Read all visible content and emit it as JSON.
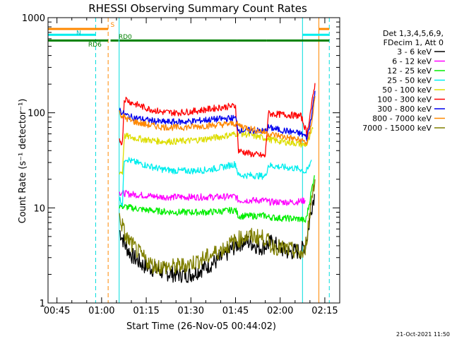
{
  "chart_data": {
    "type": "line",
    "title": "RHESSI Observing Summary Count Rates",
    "xlabel": "Start Time (26-Nov-05 00:44:02)",
    "ylabel": "Count Rate (s⁻¹ detector⁻¹)",
    "yscale": "log",
    "ylim": [
      1,
      1000
    ],
    "xlim_minutes": [
      -3,
      95
    ],
    "x_ticks": [
      {
        "label": "00:45",
        "minutes": 0
      },
      {
        "label": "01:00",
        "minutes": 15
      },
      {
        "label": "01:15",
        "minutes": 30
      },
      {
        "label": "01:30",
        "minutes": 45
      },
      {
        "label": "01:45",
        "minutes": 60
      },
      {
        "label": "02:00",
        "minutes": 75
      },
      {
        "label": "02:15",
        "minutes": 90
      }
    ],
    "y_ticks": [
      {
        "label": "1",
        "value": 1
      },
      {
        "label": "10",
        "value": 10
      },
      {
        "label": "100",
        "value": 100
      },
      {
        "label": "1000",
        "value": 1000
      }
    ],
    "legend_header": [
      "Det 1,3,4,5,6,9,",
      "FDecim 1, Att 0"
    ],
    "series": [
      {
        "name": "3 - 6 keV",
        "color": "#000000",
        "points": [
          [
            21,
            5.8
          ],
          [
            22,
            4.8
          ],
          [
            23,
            4.0
          ],
          [
            25,
            3.2
          ],
          [
            27,
            2.8
          ],
          [
            29,
            2.5
          ],
          [
            32,
            2.3
          ],
          [
            36,
            2.1
          ],
          [
            40,
            2.0
          ],
          [
            45,
            2.0
          ],
          [
            50,
            2.4
          ],
          [
            55,
            2.9
          ],
          [
            60,
            4.0
          ],
          [
            63,
            4.5
          ],
          [
            66,
            4.2
          ],
          [
            68,
            3.8
          ],
          [
            70,
            4.0
          ],
          [
            72,
            4.3
          ],
          [
            74,
            4.0
          ],
          [
            76,
            3.6
          ],
          [
            78,
            3.4
          ],
          [
            80,
            3.5
          ],
          [
            82,
            3.5
          ],
          [
            83.5,
            4.2
          ],
          [
            84.5,
            6.0
          ],
          [
            85.5,
            10.0
          ],
          [
            86.5,
            14.0
          ]
        ]
      },
      {
        "name": "6 - 12 keV",
        "color": "#ff00ff",
        "points": [
          [
            21,
            14.5
          ],
          [
            24,
            14.0
          ],
          [
            30,
            13.5
          ],
          [
            35,
            13.0
          ],
          [
            40,
            13.0
          ],
          [
            45,
            13.0
          ],
          [
            50,
            13.0
          ],
          [
            55,
            13.0
          ],
          [
            60,
            13.2
          ],
          [
            61,
            12.0
          ],
          [
            65,
            12.0
          ],
          [
            70,
            12.0
          ],
          [
            71,
            11.5
          ],
          [
            75,
            11.5
          ],
          [
            80,
            11.5
          ],
          [
            82,
            11.8
          ],
          [
            83.5,
            12.0
          ]
        ]
      },
      {
        "name": "12 - 25 keV",
        "color": "#00ee00",
        "points": [
          [
            21,
            10.5
          ],
          [
            25,
            10.0
          ],
          [
            30,
            9.5
          ],
          [
            35,
            9.2
          ],
          [
            40,
            9.0
          ],
          [
            45,
            9.0
          ],
          [
            50,
            9.0
          ],
          [
            55,
            9.2
          ],
          [
            60,
            9.5
          ],
          [
            61,
            8.2
          ],
          [
            65,
            8.2
          ],
          [
            70,
            8.3
          ],
          [
            71,
            8.0
          ],
          [
            75,
            7.8
          ],
          [
            80,
            7.7
          ],
          [
            82,
            7.6
          ],
          [
            83.5,
            7.2
          ],
          [
            84.5,
            10.0
          ],
          [
            85.5,
            15.0
          ],
          [
            86.5,
            22.0
          ]
        ]
      },
      {
        "name": "25 - 50 keV",
        "color": "#00eeee",
        "points": [
          [
            21,
            12.5
          ],
          [
            22,
            11.0
          ],
          [
            22.6,
            32.0
          ],
          [
            23,
            33.5
          ],
          [
            25,
            31.0
          ],
          [
            30,
            28.0
          ],
          [
            35,
            25.5
          ],
          [
            40,
            24.5
          ],
          [
            45,
            24.5
          ],
          [
            50,
            25.0
          ],
          [
            55,
            26.5
          ],
          [
            60,
            29.0
          ],
          [
            61,
            22.0
          ],
          [
            65,
            22.0
          ],
          [
            70,
            21.5
          ],
          [
            71,
            28.0
          ],
          [
            75,
            27.0
          ],
          [
            80,
            26.0
          ],
          [
            82,
            25.5
          ],
          [
            83.5,
            23.5
          ],
          [
            84.5,
            26.0
          ],
          [
            85.5,
            32.0
          ]
        ]
      },
      {
        "name": "50 - 100 keV",
        "color": "#dddd00",
        "points": [
          [
            21,
            24.0
          ],
          [
            22,
            23.5
          ],
          [
            22.6,
            56.0
          ],
          [
            23,
            57.0
          ],
          [
            25,
            55.0
          ],
          [
            30,
            52.0
          ],
          [
            35,
            50.0
          ],
          [
            40,
            50.0
          ],
          [
            45,
            51.0
          ],
          [
            50,
            53.0
          ],
          [
            55,
            56.0
          ],
          [
            60,
            60.0
          ],
          [
            61,
            61.0
          ],
          [
            63,
            60.0
          ],
          [
            65,
            58.0
          ],
          [
            70,
            54.0
          ],
          [
            72,
            52.0
          ],
          [
            75,
            50.0
          ],
          [
            80,
            48.0
          ],
          [
            83,
            46.0
          ],
          [
            84,
            47.0
          ],
          [
            85,
            55.0
          ],
          [
            86,
            68.0
          ]
        ]
      },
      {
        "name": "100 - 300 keV",
        "color": "#ff0000",
        "points": [
          [
            21,
            52.0
          ],
          [
            22,
            48.0
          ],
          [
            22.6,
            135.0
          ],
          [
            23,
            140.0
          ],
          [
            25,
            128.0
          ],
          [
            30,
            112.0
          ],
          [
            35,
            102.0
          ],
          [
            40,
            100.0
          ],
          [
            45,
            103.0
          ],
          [
            50,
            108.0
          ],
          [
            55,
            114.0
          ],
          [
            60,
            118.0
          ],
          [
            61,
            40.0
          ],
          [
            65,
            37.0
          ],
          [
            70,
            35.0
          ],
          [
            71,
            98.0
          ],
          [
            75,
            96.0
          ],
          [
            80,
            94.0
          ],
          [
            82,
            92.0
          ],
          [
            83,
            75.0
          ],
          [
            84,
            60.0
          ],
          [
            85,
            95.0
          ],
          [
            86,
            145.0
          ],
          [
            86.7,
            205.0
          ]
        ]
      },
      {
        "name": "300 - 800 keV",
        "color": "#0000ee",
        "points": [
          [
            21,
            108.0
          ],
          [
            22,
            100.0
          ],
          [
            23,
            95.0
          ],
          [
            25,
            90.0
          ],
          [
            30,
            84.0
          ],
          [
            35,
            80.0
          ],
          [
            40,
            80.0
          ],
          [
            45,
            81.0
          ],
          [
            50,
            84.0
          ],
          [
            55,
            86.0
          ],
          [
            60,
            88.0
          ],
          [
            61,
            66.0
          ],
          [
            65,
            65.0
          ],
          [
            70,
            64.0
          ],
          [
            71,
            70.0
          ],
          [
            75,
            66.0
          ],
          [
            80,
            62.0
          ],
          [
            82,
            60.0
          ],
          [
            83,
            58.0
          ],
          [
            84,
            54.0
          ],
          [
            85,
            75.0
          ],
          [
            86,
            120.0
          ],
          [
            86.7,
            170.0
          ]
        ]
      },
      {
        "name": "800 - 7000 keV",
        "color": "#ff8800",
        "points": [
          [
            21,
            100.0
          ],
          [
            22,
            92.0
          ],
          [
            23,
            88.0
          ],
          [
            25,
            82.0
          ],
          [
            30,
            75.0
          ],
          [
            35,
            71.0
          ],
          [
            40,
            70.0
          ],
          [
            45,
            71.0
          ],
          [
            50,
            73.0
          ],
          [
            55,
            75.0
          ],
          [
            60,
            77.0
          ],
          [
            61,
            74.0
          ],
          [
            65,
            68.0
          ],
          [
            70,
            62.0
          ],
          [
            71,
            60.0
          ],
          [
            75,
            57.0
          ],
          [
            80,
            53.0
          ],
          [
            82,
            51.0
          ],
          [
            83,
            50.0
          ],
          [
            84,
            48.0
          ],
          [
            85,
            62.0
          ],
          [
            86,
            100.0
          ],
          [
            86.7,
            150.0
          ]
        ]
      },
      {
        "name": "7000 - 15000 keV",
        "color": "#808000",
        "points": [
          [
            21,
            8.0
          ],
          [
            22,
            6.5
          ],
          [
            23,
            5.0
          ],
          [
            25,
            4.2
          ],
          [
            27,
            3.5
          ],
          [
            29,
            3.0
          ],
          [
            32,
            2.5
          ],
          [
            36,
            2.4
          ],
          [
            40,
            2.4
          ],
          [
            45,
            2.6
          ],
          [
            50,
            3.0
          ],
          [
            55,
            3.6
          ],
          [
            60,
            4.5
          ],
          [
            63,
            5.0
          ],
          [
            66,
            5.0
          ],
          [
            70,
            4.8
          ],
          [
            72,
            4.0
          ],
          [
            75,
            3.8
          ],
          [
            80,
            3.5
          ],
          [
            83,
            3.2
          ],
          [
            84,
            5.0
          ],
          [
            85,
            9.0
          ],
          [
            86,
            16.0
          ],
          [
            86.7,
            20.0
          ]
        ]
      }
    ],
    "vertical_markers": [
      {
        "minutes": 13.0,
        "color": "#00dddd",
        "style": "dashed"
      },
      {
        "minutes": 17.2,
        "color": "#ff8800",
        "style": "dashed"
      },
      {
        "minutes": 20.9,
        "color": "#00dddd",
        "style": "solid"
      },
      {
        "minutes": 82.5,
        "color": "#00dddd",
        "style": "solid"
      },
      {
        "minutes": 88.0,
        "color": "#ff8800",
        "style": "solid"
      },
      {
        "minutes": 91.5,
        "color": "#00dddd",
        "style": "dashed"
      }
    ],
    "status_bars": [
      {
        "label": "S",
        "color": "#ff8800",
        "value": 760,
        "segments": [
          [
            -3,
            17.2
          ],
          [
            88,
            91.5
          ]
        ]
      },
      {
        "label": "N",
        "color": "#00eeee",
        "value": 660,
        "segments": [
          [
            -3,
            13.0
          ],
          [
            82.5,
            91.5
          ]
        ]
      },
      {
        "label": "RD6",
        "color": "#008000",
        "value": 575,
        "segments": [
          [
            -3,
            17.2
          ],
          [
            18,
            20.7
          ],
          [
            21,
            60.5
          ],
          [
            60.5,
            70.5
          ],
          [
            70.5,
            91.5
          ]
        ]
      }
    ],
    "status_labels": [
      {
        "text": "S",
        "color": "#ff8800",
        "minutes": 18.0,
        "value": 800
      },
      {
        "text": "N",
        "color": "#00bbbb",
        "minutes": 6.5,
        "value": 660
      },
      {
        "text": "RD6",
        "color": "#008000",
        "minutes": 10.5,
        "value": 495
      },
      {
        "text": "RD0",
        "color": "#008000",
        "minutes": 20.7,
        "value": 600
      }
    ],
    "timestamp": "21-Oct-2021 11:50"
  }
}
